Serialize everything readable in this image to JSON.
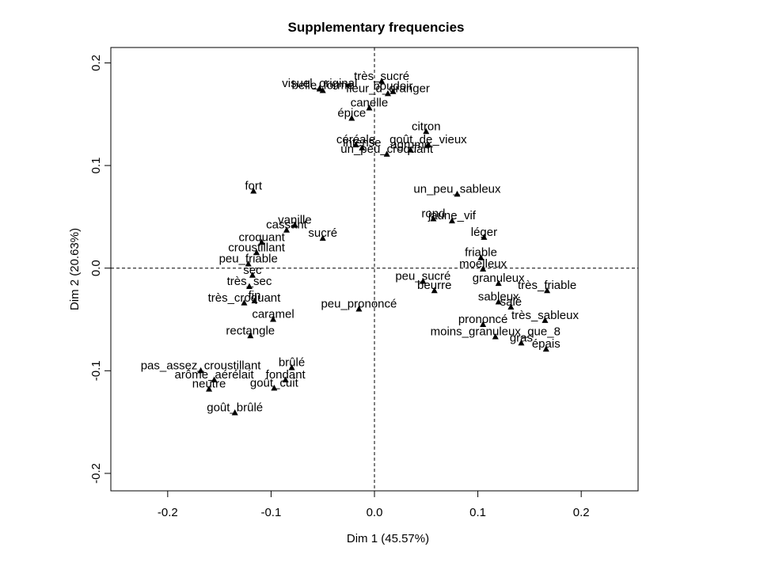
{
  "chart_data": {
    "type": "scatter",
    "title": "Supplementary frequencies",
    "xlabel": "Dim 1 (45.57%)",
    "ylabel": "Dim 2 (20.63%)",
    "xlim": [
      -0.255,
      0.255
    ],
    "ylim": [
      -0.217,
      0.215
    ],
    "xticks": [
      -0.2,
      -0.1,
      0.0,
      0.1,
      0.2
    ],
    "yticks": [
      -0.2,
      -0.1,
      0.0,
      0.1,
      0.2
    ],
    "xtick_labels": [
      "-0.2",
      "-0.1",
      "0.0",
      "0.1",
      "0.2"
    ],
    "ytick_labels": [
      "-0.2",
      "-0.1",
      "0.0",
      "0.1",
      "0.2"
    ],
    "reference_lines": {
      "x": 0,
      "y": 0,
      "style": "dashed"
    },
    "marker": "triangle",
    "grid": false,
    "points": [
      {
        "label": "très_sucré",
        "x": 0.007,
        "y": 0.182
      },
      {
        "label": "visuel_original",
        "x": -0.053,
        "y": 0.175
      },
      {
        "label": "boudoir",
        "x": 0.018,
        "y": 0.172
      },
      {
        "label": "belle_forme",
        "x": -0.05,
        "y": 0.173
      },
      {
        "label": "fleur_d_oranger",
        "x": 0.013,
        "y": 0.17
      },
      {
        "label": "canelle",
        "x": -0.005,
        "y": 0.156
      },
      {
        "label": "épice",
        "x": -0.022,
        "y": 0.146
      },
      {
        "label": "citron",
        "x": 0.05,
        "y": 0.133
      },
      {
        "label": "goût_de_vieux",
        "x": 0.052,
        "y": 0.12
      },
      {
        "label": "céréale",
        "x": -0.018,
        "y": 0.12
      },
      {
        "label": "intense",
        "x": -0.012,
        "y": 0.117
      },
      {
        "label": "agrume",
        "x": 0.035,
        "y": 0.115
      },
      {
        "label": "un_peu_croquant",
        "x": 0.012,
        "y": 0.111
      },
      {
        "label": "fort",
        "x": -0.117,
        "y": 0.075
      },
      {
        "label": "un_peu_sableux",
        "x": 0.08,
        "y": 0.072
      },
      {
        "label": "rond",
        "x": 0.057,
        "y": 0.048
      },
      {
        "label": "jaune_vif",
        "x": 0.075,
        "y": 0.046
      },
      {
        "label": "vanille",
        "x": -0.077,
        "y": 0.042
      },
      {
        "label": "cassant",
        "x": -0.085,
        "y": 0.037
      },
      {
        "label": "léger",
        "x": 0.106,
        "y": 0.03
      },
      {
        "label": "sucré",
        "x": -0.05,
        "y": 0.029
      },
      {
        "label": "croquant",
        "x": -0.109,
        "y": 0.025
      },
      {
        "label": "croustillant",
        "x": -0.114,
        "y": 0.015
      },
      {
        "label": "friable",
        "x": 0.103,
        "y": 0.01
      },
      {
        "label": "peu_friable",
        "x": -0.122,
        "y": 0.004
      },
      {
        "label": "moelleux",
        "x": 0.105,
        "y": -0.001
      },
      {
        "label": "sec",
        "x": -0.118,
        "y": -0.007
      },
      {
        "label": "peu_sucré",
        "x": 0.047,
        "y": -0.013
      },
      {
        "label": "granuleux",
        "x": 0.12,
        "y": -0.015
      },
      {
        "label": "très_friable",
        "x": 0.167,
        "y": -0.022
      },
      {
        "label": "très_sec",
        "x": -0.121,
        "y": -0.018
      },
      {
        "label": "beurre",
        "x": 0.058,
        "y": -0.022
      },
      {
        "label": "très_croquant",
        "x": -0.126,
        "y": -0.034
      },
      {
        "label": "fin",
        "x": -0.116,
        "y": -0.032
      },
      {
        "label": "sableux",
        "x": 0.12,
        "y": -0.033
      },
      {
        "label": "salé",
        "x": 0.132,
        "y": -0.038
      },
      {
        "label": "peu_prononcé",
        "x": -0.015,
        "y": -0.04
      },
      {
        "label": "très_sableux",
        "x": 0.165,
        "y": -0.051
      },
      {
        "label": "caramel",
        "x": -0.098,
        "y": -0.05
      },
      {
        "label": "prononcé",
        "x": 0.105,
        "y": -0.055
      },
      {
        "label": "moins_granuleux_que_8",
        "x": 0.117,
        "y": -0.067
      },
      {
        "label": "rectangle",
        "x": -0.12,
        "y": -0.066
      },
      {
        "label": "gras",
        "x": 0.142,
        "y": -0.073
      },
      {
        "label": "épais",
        "x": 0.166,
        "y": -0.079
      },
      {
        "label": "brûlé",
        "x": -0.08,
        "y": -0.097
      },
      {
        "label": "pas_assez_croustillant",
        "x": -0.168,
        "y": -0.1
      },
      {
        "label": "fondant",
        "x": -0.086,
        "y": -0.109
      },
      {
        "label": "arôme_aérélait",
        "x": -0.155,
        "y": -0.109
      },
      {
        "label": "goût_cuit",
        "x": -0.097,
        "y": -0.117
      },
      {
        "label": "neutre",
        "x": -0.16,
        "y": -0.118
      },
      {
        "label": "goût_brûlé",
        "x": -0.135,
        "y": -0.141
      }
    ]
  }
}
